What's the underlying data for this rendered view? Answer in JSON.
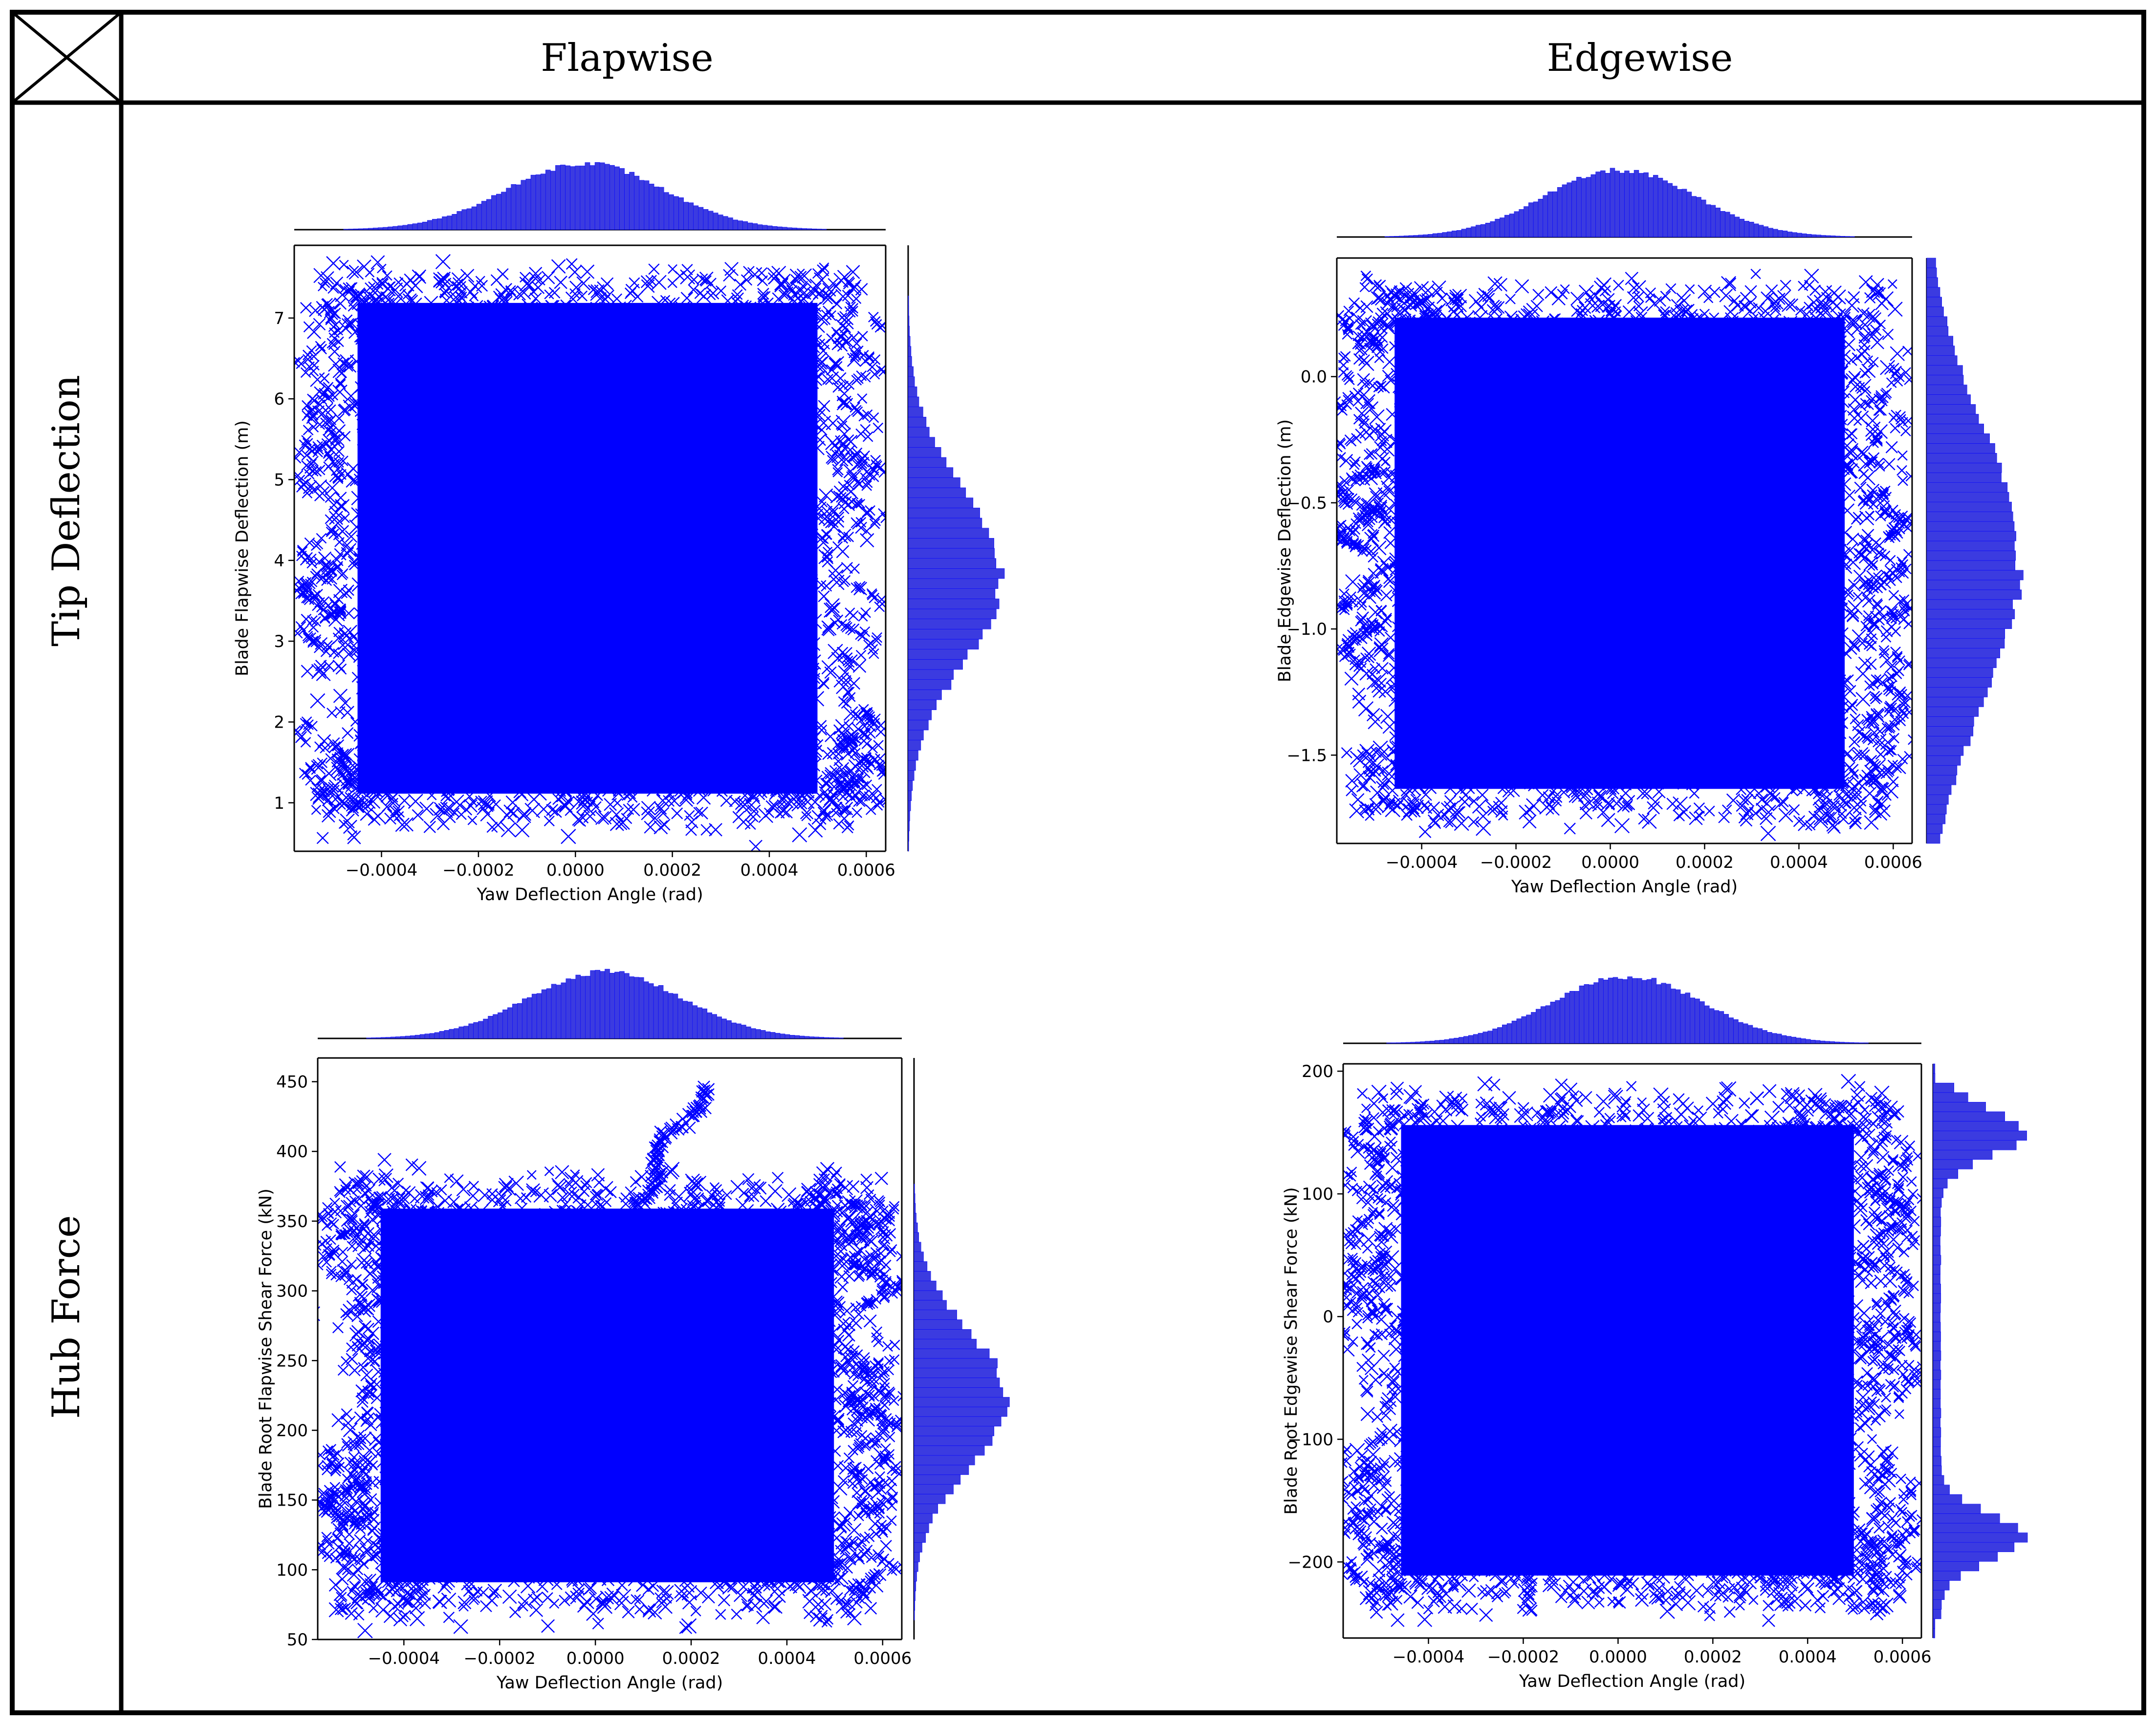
{
  "table": {
    "col_headers": [
      "Flapwise",
      "Edgewise"
    ],
    "row_headers": [
      "Tip Deflection",
      "Hub Force"
    ]
  },
  "colors": {
    "series": "#0000ff",
    "hist_fill": "#3b3be0",
    "border": "#000000"
  },
  "chart_data": [
    {
      "type": "scatter",
      "panel": "tip-flapwise",
      "xlabel": "Yaw Deflection Angle (rad)",
      "ylabel": "Blade Flapwise Deflection (m)",
      "xlim": [
        -0.00058,
        0.00064
      ],
      "ylim": [
        0.4,
        7.9
      ],
      "xticks": [
        "−0.0004",
        "−0.0002",
        "0.0000",
        "0.0002",
        "0.0004",
        "0.0006"
      ],
      "xtick_values": [
        -0.0004,
        -0.0002,
        0,
        0.0002,
        0.0004,
        0.0006
      ],
      "yticks": [
        "1",
        "2",
        "3",
        "4",
        "5",
        "6",
        "7"
      ],
      "ytick_values": [
        1,
        2,
        3,
        4,
        5,
        6,
        7
      ],
      "marker": "x",
      "grid": false,
      "marginal_x": {
        "type": "histogram",
        "center": 2e-05,
        "std": 0.00016
      },
      "marginal_y": {
        "type": "histogram",
        "center": 3.8,
        "std": 1.05
      },
      "cloud": {
        "x": [
          -0.00052,
          0.00058
        ],
        "y": [
          0.75,
          7.55
        ]
      }
    },
    {
      "type": "scatter",
      "panel": "tip-edgewise",
      "xlabel": "Yaw Deflection Angle (rad)",
      "ylabel": "Blade Edgewise Deflection (m)",
      "xlim": [
        -0.00058,
        0.00064
      ],
      "ylim": [
        -1.85,
        0.47
      ],
      "xticks": [
        "−0.0004",
        "−0.0002",
        "0.0000",
        "0.0002",
        "0.0004",
        "0.0006"
      ],
      "xtick_values": [
        -0.0004,
        -0.0002,
        0,
        0.0002,
        0.0004,
        0.0006
      ],
      "yticks": [
        "0.0",
        "−0.5",
        "−1.0",
        "−1.5"
      ],
      "ytick_values": [
        0,
        -0.5,
        -1.0,
        -1.5
      ],
      "marker": "x",
      "grid": false,
      "marginal_x": {
        "type": "histogram",
        "center": 2e-05,
        "std": 0.00016
      },
      "marginal_y": {
        "type": "histogram",
        "center": -0.75,
        "std": 0.55
      },
      "cloud": {
        "x": [
          -0.00053,
          0.00058
        ],
        "y": [
          -1.75,
          0.35
        ]
      }
    },
    {
      "type": "scatter",
      "panel": "hub-flapwise",
      "xlabel": "Yaw Deflection Angle (rad)",
      "ylabel": "Blade Root Flapwise Shear Force (kN)",
      "xlim": [
        -0.00058,
        0.00064
      ],
      "ylim": [
        50,
        467
      ],
      "xticks": [
        "−0.0004",
        "−0.0002",
        "0.0000",
        "0.0002",
        "0.0004",
        "0.0006"
      ],
      "xtick_values": [
        -0.0004,
        -0.0002,
        0,
        0.0002,
        0.0004,
        0.0006
      ],
      "yticks": [
        "50",
        "100",
        "150",
        "200",
        "250",
        "300",
        "350",
        "400",
        "450"
      ],
      "ytick_values": [
        50,
        100,
        150,
        200,
        250,
        300,
        350,
        400,
        450
      ],
      "marker": "x",
      "grid": false,
      "marginal_x": {
        "type": "histogram",
        "center": 2e-05,
        "std": 0.00016
      },
      "marginal_y": {
        "type": "histogram",
        "center": 222,
        "std": 48
      },
      "cloud": {
        "x": [
          -0.00052,
          0.00058
        ],
        "y": [
          70,
          380
        ],
        "tail_max": 445
      }
    },
    {
      "type": "scatter",
      "panel": "hub-edgewise",
      "xlabel": "Yaw Deflection Angle (rad)",
      "ylabel": "Blade Root Edgewise Shear Force (kN)",
      "xlim": [
        -0.00058,
        0.00064
      ],
      "ylim": [
        -262,
        206
      ],
      "xticks": [
        "−0.0004",
        "−0.0002",
        "0.0000",
        "0.0002",
        "0.0004",
        "0.0006"
      ],
      "xtick_values": [
        -0.0004,
        -0.0002,
        0,
        0.0002,
        0.0004,
        0.0006
      ],
      "yticks": [
        "200",
        "100",
        "0",
        "−100",
        "−200"
      ],
      "ytick_values": [
        200,
        100,
        0,
        -100,
        -200
      ],
      "marker": "x",
      "grid": false,
      "marginal_x": {
        "type": "histogram",
        "center": 2e-05,
        "std": 0.00016
      },
      "marginal_y": {
        "type": "histogram",
        "bimodal_peaks": [
          -180,
          150
        ]
      },
      "cloud": {
        "x": [
          -0.00053,
          0.00058
        ],
        "y": [
          -235,
          180
        ]
      }
    }
  ]
}
